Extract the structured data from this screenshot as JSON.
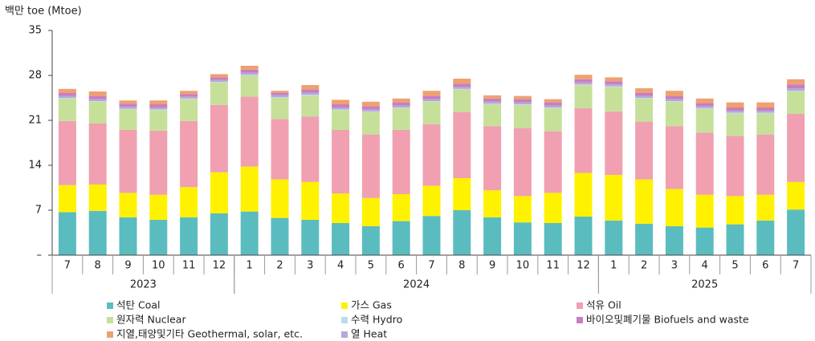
{
  "chart_data": {
    "type": "stacked_bar",
    "y_label": "백만 toe (Mtoe)",
    "categories": [
      "7",
      "8",
      "9",
      "10",
      "11",
      "12",
      "1",
      "2",
      "3",
      "4",
      "5",
      "6",
      "7",
      "8",
      "9",
      "10",
      "11",
      "12",
      "1",
      "2",
      "3",
      "4",
      "5",
      "6",
      "7"
    ],
    "year_groups": [
      {
        "name": "2023",
        "size": 6
      },
      {
        "name": "2024",
        "size": 12
      },
      {
        "name": "2025",
        "size": 7
      }
    ],
    "ylim": [
      0,
      35
    ],
    "yticks": [
      {
        "value": 0,
        "label": "–"
      },
      7,
      14,
      21,
      28,
      35
    ],
    "series": [
      {
        "name": "석탄 Coal",
        "color": "#5bbcbf",
        "values": [
          6.7,
          6.9,
          5.9,
          5.5,
          5.9,
          6.5,
          6.8,
          5.8,
          5.5,
          5.0,
          4.5,
          5.3,
          6.1,
          7.0,
          5.9,
          5.1,
          5.0,
          6.0,
          5.4,
          4.9,
          4.5,
          4.3,
          4.8,
          5.4,
          7.1
        ]
      },
      {
        "name": "가스 Gas",
        "color": "#fff200",
        "values": [
          4.2,
          4.1,
          3.8,
          3.9,
          4.7,
          6.4,
          7.0,
          6.0,
          5.9,
          4.6,
          4.4,
          4.2,
          4.7,
          5.0,
          4.2,
          4.1,
          4.7,
          6.8,
          7.1,
          6.9,
          5.8,
          5.1,
          4.4,
          4.0,
          4.3
        ]
      },
      {
        "name": "석유 Oil",
        "color": "#f0a0b0",
        "values": [
          10.0,
          9.5,
          9.8,
          10.0,
          10.3,
          10.5,
          10.9,
          9.4,
          10.2,
          9.9,
          9.9,
          10.0,
          9.6,
          10.3,
          10.0,
          10.6,
          9.6,
          10.1,
          9.9,
          9.0,
          9.8,
          9.7,
          9.4,
          9.4,
          10.6
        ]
      },
      {
        "name": "원자력 Nuclear",
        "color": "#c6e09a",
        "values": [
          3.5,
          3.4,
          3.2,
          3.2,
          3.4,
          3.5,
          3.3,
          3.3,
          3.3,
          3.1,
          3.5,
          3.4,
          3.5,
          3.5,
          3.4,
          3.6,
          3.6,
          3.6,
          3.8,
          3.6,
          3.8,
          3.7,
          3.5,
          3.3,
          3.5
        ]
      },
      {
        "name": "수력 Hydro",
        "color": "#b8dcf0",
        "values": [
          0.1,
          0.1,
          0.1,
          0.1,
          0.1,
          0.1,
          0.1,
          0.1,
          0.1,
          0.1,
          0.1,
          0.1,
          0.1,
          0.1,
          0.1,
          0.1,
          0.1,
          0.1,
          0.1,
          0.1,
          0.1,
          0.1,
          0.1,
          0.1,
          0.1
        ]
      },
      {
        "name": "바이오및폐기물 Biofuels and waste",
        "color": "#c77fbf",
        "values": [
          0.5,
          0.5,
          0.5,
          0.5,
          0.4,
          0.4,
          0.5,
          0.4,
          0.5,
          0.5,
          0.5,
          0.5,
          0.5,
          0.5,
          0.5,
          0.5,
          0.5,
          0.5,
          0.5,
          0.5,
          0.5,
          0.5,
          0.5,
          0.5,
          0.6
        ]
      },
      {
        "name": "지열,태양및기타 Geothermal, solar, etc.",
        "color": "#f0a070",
        "values": [
          0.6,
          0.7,
          0.5,
          0.6,
          0.5,
          0.5,
          0.6,
          0.3,
          0.7,
          0.7,
          0.7,
          0.6,
          0.8,
          0.8,
          0.5,
          0.5,
          0.5,
          0.7,
          0.6,
          0.7,
          0.8,
          0.7,
          0.8,
          0.8,
          0.8
        ]
      },
      {
        "name": "열 Heat",
        "color": "#b8a8d8",
        "values": [
          0.3,
          0.3,
          0.3,
          0.3,
          0.3,
          0.3,
          0.3,
          0.3,
          0.3,
          0.3,
          0.3,
          0.3,
          0.3,
          0.3,
          0.3,
          0.3,
          0.3,
          0.3,
          0.3,
          0.3,
          0.3,
          0.3,
          0.3,
          0.3,
          0.4
        ]
      }
    ]
  }
}
